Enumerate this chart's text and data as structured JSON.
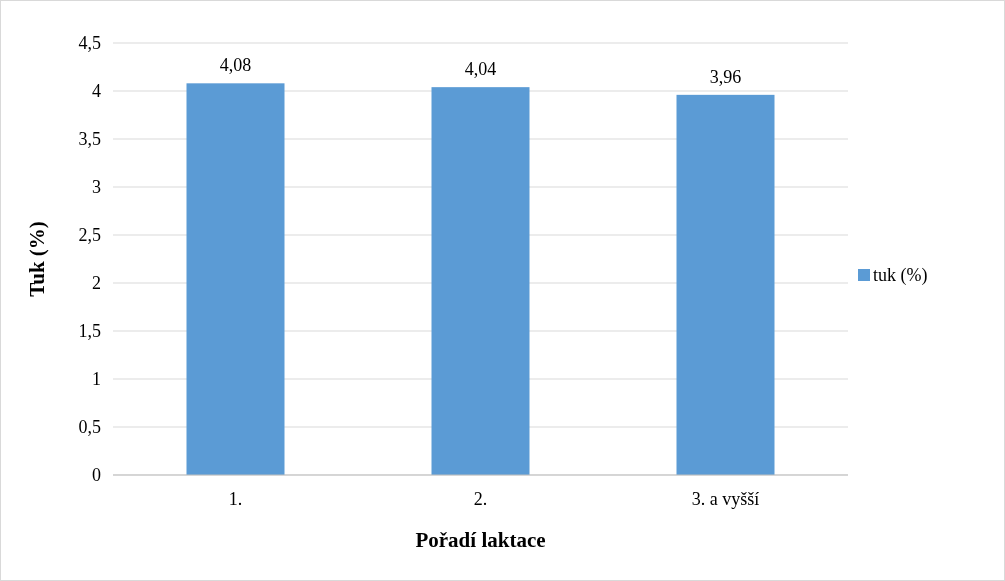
{
  "chart_data": {
    "type": "bar",
    "xlabel": "Pořadí laktace",
    "ylabel": "Tuk (%)",
    "categories": [
      "1.",
      "2.",
      "3. a vyšší"
    ],
    "series": [
      {
        "name": "tuk (%)",
        "color": "#5b9bd5",
        "values": [
          4.08,
          4.04,
          3.96
        ],
        "value_labels": [
          "4,08",
          "4,04",
          "3,96"
        ]
      }
    ],
    "ylim": [
      0,
      4.5
    ],
    "yticks": [
      0,
      {
        "value": 0.5,
        "label": "0,5"
      },
      1,
      {
        "value": 1.5,
        "label": "1,5"
      },
      2,
      {
        "value": 2.5,
        "label": "2,5"
      },
      3,
      {
        "value": 3.5,
        "label": "3,5"
      },
      4,
      {
        "value": 4.5,
        "label": "4,5"
      }
    ],
    "grid": "y",
    "legend": "right"
  }
}
